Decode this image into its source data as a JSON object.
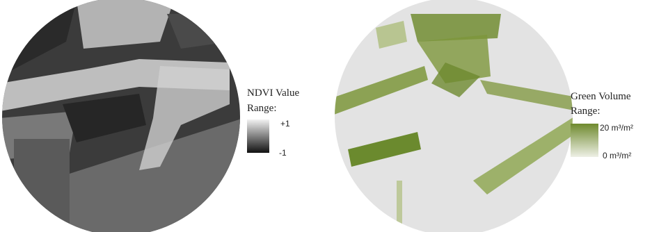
{
  "panels": [
    {
      "legend": {
        "title": "NDVI Value",
        "subtitle": "Range:",
        "max_label": "+1",
        "min_label": "-1"
      }
    },
    {
      "legend": {
        "title": "Green Volume",
        "subtitle": "Range:",
        "max_label": "20 m³/m²",
        "min_label": "0 m³/m²"
      }
    }
  ]
}
